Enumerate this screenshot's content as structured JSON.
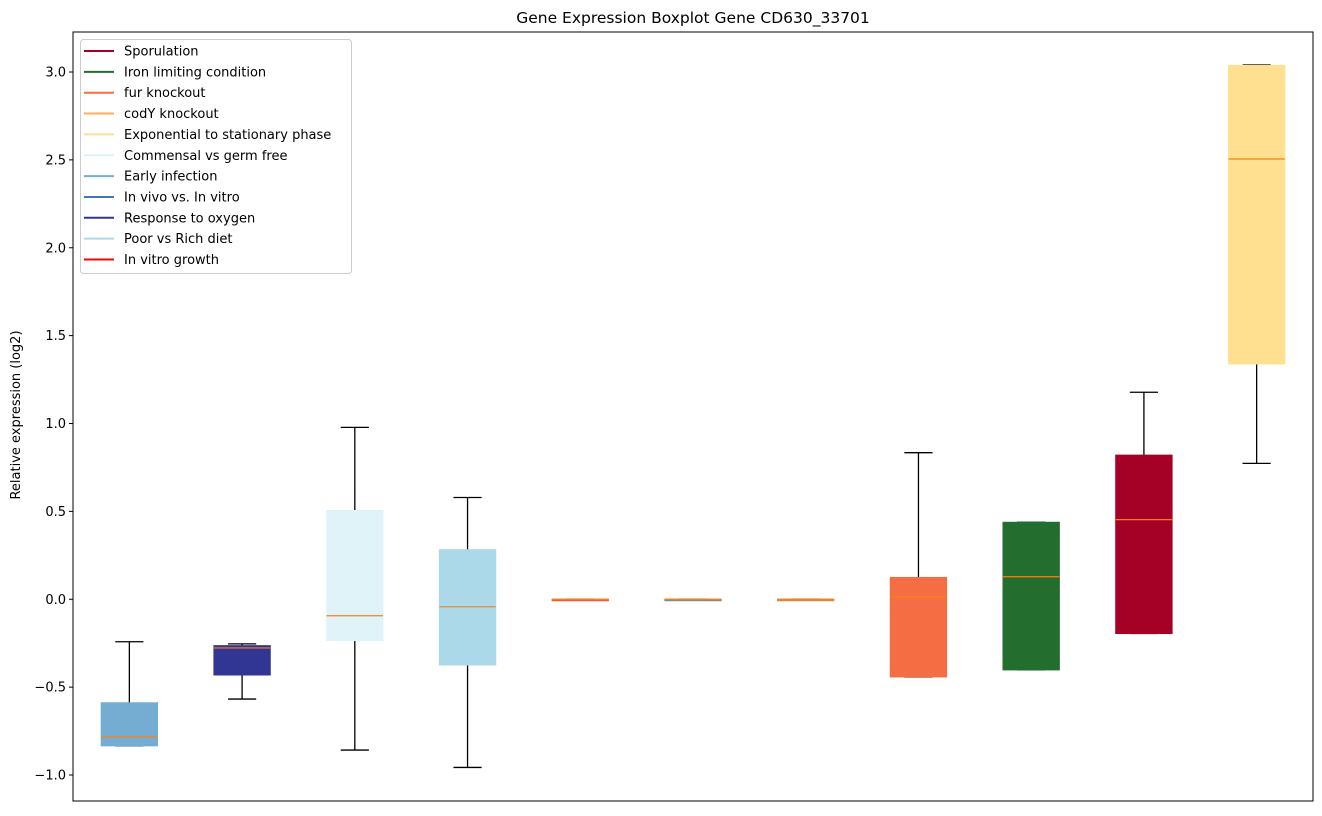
{
  "chart_data": {
    "type": "boxplot",
    "title": "Gene Expression Boxplot Gene CD630_33701",
    "xlabel": "",
    "ylabel": "Relative expression (log2)",
    "ylim": [
      -1.15,
      3.23
    ],
    "yticks": [
      -1.0,
      -0.5,
      0.0,
      0.5,
      1.0,
      1.5,
      2.0,
      2.5,
      3.0
    ],
    "ytick_labels": [
      "−1.0",
      "−0.5",
      "0.0",
      "0.5",
      "1.0",
      "1.5",
      "2.0",
      "2.5",
      "3.0"
    ],
    "grid": false,
    "legend_position": "top-left",
    "median_color": "#ff7f0e",
    "legend": [
      {
        "label": "Sporulation",
        "color": "#a50026"
      },
      {
        "label": "Iron limiting condition",
        "color": "#236e2f"
      },
      {
        "label": "fur knockout",
        "color": "#f46d43"
      },
      {
        "label": "codY knockout",
        "color": "#fdae61"
      },
      {
        "label": "Exponential to stationary phase",
        "color": "#fee090"
      },
      {
        "label": "Commensal vs germ free",
        "color": "#e0f3f8"
      },
      {
        "label": "Early infection",
        "color": "#74add1"
      },
      {
        "label": "In vivo vs. In vitro",
        "color": "#4575b4"
      },
      {
        "label": "Response to oxygen",
        "color": "#313695"
      },
      {
        "label": "Poor vs Rich diet",
        "color": "#abd9e9"
      },
      {
        "label": "In vitro growth",
        "color": "#ff0000"
      }
    ],
    "boxes": [
      {
        "group": "Early infection",
        "color": "#74add1",
        "whisker_low": -0.834,
        "q1": -0.834,
        "median": -0.784,
        "q3": -0.589,
        "whisker_high": -0.242
      },
      {
        "group": "Response to oxygen",
        "color": "#313695",
        "whisker_low": -0.568,
        "q1": -0.431,
        "median": -0.277,
        "q3": -0.264,
        "whisker_high": -0.254
      },
      {
        "group": "Commensal vs germ free",
        "color": "#e0f3f8",
        "whisker_low": -0.858,
        "q1": -0.235,
        "median": -0.094,
        "q3": 0.505,
        "whisker_high": 0.978
      },
      {
        "group": "Poor vs Rich diet",
        "color": "#abd9e9",
        "whisker_low": -0.957,
        "q1": -0.374,
        "median": -0.043,
        "q3": 0.282,
        "whisker_high": 0.579
      },
      {
        "group": "In vitro growth",
        "color": "#e8603a",
        "whisker_low": 0.0,
        "q1": 0.0,
        "median": 0.0,
        "q3": 0.0,
        "whisker_high": 0.0
      },
      {
        "group": "In vivo vs. In vitro",
        "color": "#8a8a80",
        "whisker_low": 0.0,
        "q1": 0.0,
        "median": 0.0,
        "q3": 0.0,
        "whisker_high": 0.0
      },
      {
        "group": "codY knockout",
        "color": "#d4894a",
        "whisker_low": 0.0,
        "q1": 0.0,
        "median": 0.0,
        "q3": 0.0,
        "whisker_high": 0.0
      },
      {
        "group": "fur knockout",
        "color": "#f46d43",
        "whisker_low": -0.442,
        "q1": -0.442,
        "median": 0.014,
        "q3": 0.124,
        "whisker_high": 0.834
      },
      {
        "group": "Iron limiting condition",
        "color": "#236e2f",
        "whisker_low": -0.402,
        "q1": -0.402,
        "median": 0.128,
        "q3": 0.438,
        "whisker_high": 0.438
      },
      {
        "group": "Sporulation",
        "color": "#a50026",
        "whisker_low": -0.195,
        "q1": -0.195,
        "median": 0.453,
        "q3": 0.82,
        "whisker_high": 1.178
      },
      {
        "group": "Exponential to stationary phase",
        "color": "#fee090",
        "whisker_low": 0.773,
        "q1": 1.339,
        "median": 2.505,
        "q3": 3.037,
        "whisker_high": 3.04
      }
    ]
  }
}
